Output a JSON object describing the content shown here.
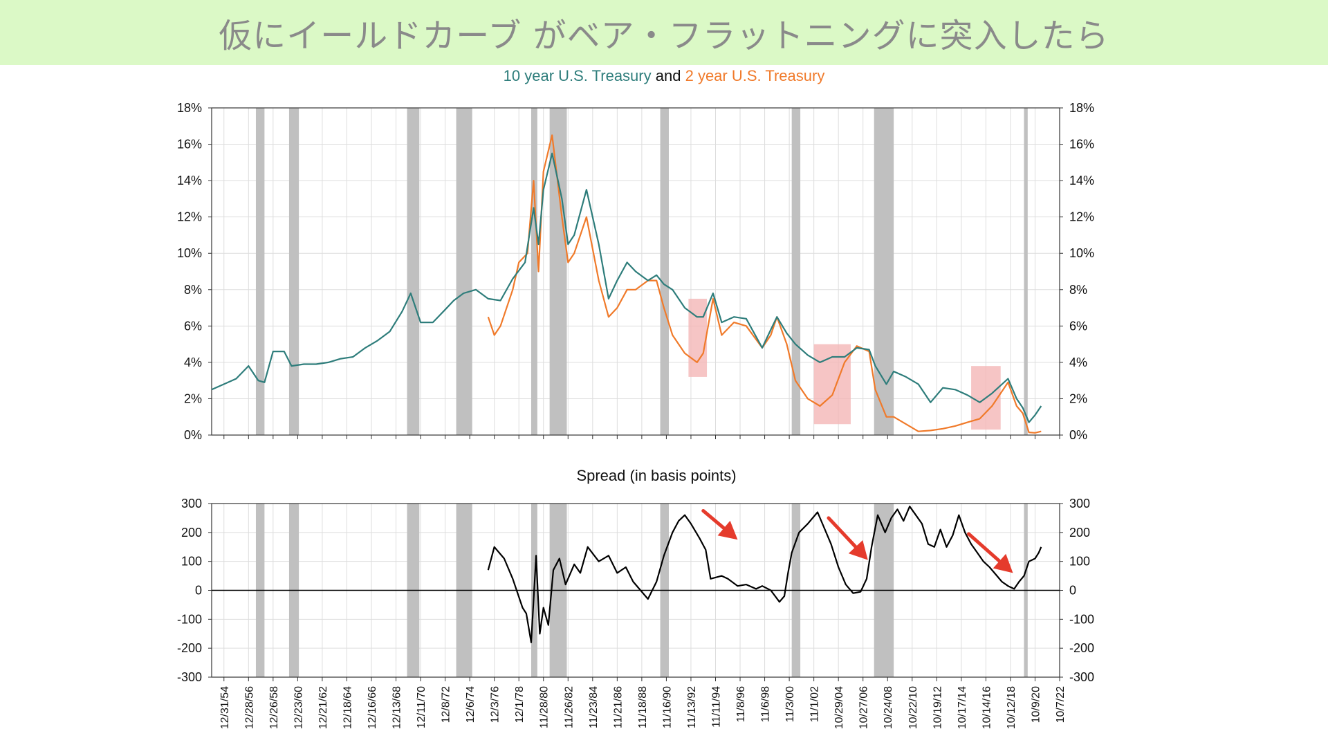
{
  "banner": {
    "title": "仮にイールドカーブ がベア・フラットニングに突入したら",
    "background": "#dbf9c6"
  },
  "colors": {
    "ten_year": "#2e7d7b",
    "two_year": "#f07a2a",
    "spread": "#000000",
    "recession": "#c0c0c0",
    "highlight": "#f4b6b6",
    "arrow": "#e53b2c"
  },
  "chart_data": [
    {
      "type": "line",
      "title_parts": [
        "10 year U.S. Treasury",
        "and",
        "2 year U.S. Treasury"
      ],
      "ylim": [
        0,
        18
      ],
      "yticks": [
        "0%",
        "2%",
        "4%",
        "6%",
        "8%",
        "10%",
        "12%",
        "14%",
        "16%",
        "18%"
      ],
      "xlim": [
        1954.0,
        2023.0
      ],
      "recessions": [
        [
          1957.6,
          1958.3
        ],
        [
          1960.3,
          1961.1
        ],
        [
          1969.9,
          1970.9
        ],
        [
          1973.9,
          1975.2
        ],
        [
          1980.0,
          1980.5
        ],
        [
          1981.5,
          1982.9
        ],
        [
          1990.5,
          1991.2
        ],
        [
          2001.2,
          2001.9
        ],
        [
          2007.9,
          2009.5
        ],
        [
          2020.1,
          2020.4
        ]
      ],
      "highlights": [
        {
          "x": [
            1992.8,
            1994.3
          ],
          "y": [
            3.2,
            7.5
          ]
        },
        {
          "x": [
            2003.0,
            2006.0
          ],
          "y": [
            0.6,
            5.0
          ]
        },
        {
          "x": [
            2015.8,
            2018.2
          ],
          "y": [
            0.3,
            3.8
          ]
        }
      ],
      "series": [
        {
          "name": "10 year U.S. Treasury",
          "x": [
            1954.0,
            1955.0,
            1956.0,
            1957.0,
            1957.8,
            1958.3,
            1959.0,
            1959.9,
            1960.5,
            1961.5,
            1962.5,
            1963.5,
            1964.5,
            1965.5,
            1966.5,
            1967.5,
            1968.5,
            1969.5,
            1970.2,
            1971.0,
            1972.0,
            1973.0,
            1973.7,
            1974.5,
            1975.5,
            1976.5,
            1977.5,
            1978.5,
            1979.5,
            1980.2,
            1980.6,
            1981.0,
            1981.7,
            1982.5,
            1983.0,
            1983.5,
            1984.5,
            1985.5,
            1986.3,
            1987.0,
            1987.8,
            1988.5,
            1989.5,
            1990.2,
            1990.8,
            1991.5,
            1992.5,
            1993.5,
            1994.0,
            1994.8,
            1995.5,
            1996.5,
            1997.5,
            1998.8,
            1999.5,
            2000.0,
            2000.8,
            2001.5,
            2002.5,
            2003.5,
            2004.5,
            2005.5,
            2006.5,
            2007.5,
            2008.0,
            2008.9,
            2009.5,
            2010.5,
            2011.5,
            2012.5,
            2013.5,
            2014.5,
            2015.5,
            2016.5,
            2017.5,
            2018.8,
            2019.5,
            2020.0,
            2020.5,
            2021.0,
            2021.5
          ],
          "values": [
            2.5,
            2.8,
            3.1,
            3.8,
            3.0,
            2.9,
            4.6,
            4.6,
            3.8,
            3.9,
            3.9,
            4.0,
            4.2,
            4.3,
            4.8,
            5.2,
            5.7,
            6.8,
            7.8,
            6.2,
            6.2,
            6.9,
            7.4,
            7.8,
            8.0,
            7.5,
            7.4,
            8.6,
            9.5,
            12.5,
            10.5,
            13.5,
            15.5,
            13.0,
            10.5,
            11.0,
            13.5,
            10.5,
            7.5,
            8.5,
            9.5,
            9.0,
            8.5,
            8.8,
            8.3,
            8.0,
            7.0,
            6.5,
            6.5,
            7.8,
            6.2,
            6.5,
            6.4,
            4.8,
            5.8,
            6.5,
            5.6,
            5.0,
            4.4,
            4.0,
            4.3,
            4.3,
            4.8,
            4.7,
            3.8,
            2.8,
            3.5,
            3.2,
            2.8,
            1.8,
            2.6,
            2.5,
            2.2,
            1.8,
            2.3,
            3.1,
            2.0,
            1.5,
            0.7,
            1.1,
            1.6
          ]
        },
        {
          "name": "2 year U.S. Treasury",
          "x": [
            1976.5,
            1977.0,
            1977.5,
            1978.5,
            1979.0,
            1979.7,
            1980.2,
            1980.6,
            1981.0,
            1981.7,
            1982.5,
            1983.0,
            1983.5,
            1984.5,
            1985.5,
            1986.3,
            1987.0,
            1987.8,
            1988.5,
            1989.5,
            1990.2,
            1990.8,
            1991.5,
            1992.5,
            1993.5,
            1994.0,
            1994.8,
            1995.5,
            1996.5,
            1997.5,
            1998.8,
            1999.5,
            2000.0,
            2000.8,
            2001.5,
            2002.5,
            2003.5,
            2004.5,
            2005.5,
            2006.5,
            2007.5,
            2008.0,
            2008.9,
            2009.5,
            2010.5,
            2011.5,
            2012.5,
            2013.5,
            2014.5,
            2015.5,
            2016.5,
            2017.5,
            2018.8,
            2019.5,
            2020.0,
            2020.5,
            2021.0,
            2021.5
          ],
          "values": [
            6.5,
            5.5,
            6.0,
            8.0,
            9.5,
            10.0,
            14.0,
            9.0,
            14.5,
            16.5,
            12.0,
            9.5,
            10.0,
            12.0,
            8.5,
            6.5,
            7.0,
            8.0,
            8.0,
            8.5,
            8.5,
            7.0,
            5.5,
            4.5,
            4.0,
            4.5,
            7.5,
            5.5,
            6.2,
            6.0,
            4.8,
            5.5,
            6.5,
            5.0,
            3.0,
            2.0,
            1.6,
            2.2,
            4.0,
            4.9,
            4.6,
            2.5,
            1.0,
            1.0,
            0.6,
            0.2,
            0.25,
            0.35,
            0.5,
            0.7,
            0.9,
            1.6,
            2.9,
            1.6,
            1.2,
            0.15,
            0.12,
            0.2
          ]
        }
      ]
    },
    {
      "type": "line",
      "title": "Spread (in basis points)",
      "ylim": [
        -300,
        300
      ],
      "yticks": [
        "-300",
        "-200",
        "-100",
        "0",
        "100",
        "200",
        "300"
      ],
      "xlim": [
        1954.0,
        2023.0
      ],
      "series": [
        {
          "x": [
            1976.5,
            1977.0,
            1977.8,
            1978.5,
            1979.3,
            1979.6,
            1980.0,
            1980.4,
            1980.7,
            1981.0,
            1981.4,
            1981.8,
            1982.3,
            1982.8,
            1983.5,
            1984.0,
            1984.6,
            1985.5,
            1986.3,
            1987.0,
            1987.7,
            1988.3,
            1988.8,
            1989.5,
            1990.2,
            1990.8,
            1991.5,
            1992.0,
            1992.5,
            1993.0,
            1993.7,
            1994.2,
            1994.6,
            1995.5,
            1996.0,
            1996.8,
            1997.5,
            1998.3,
            1998.8,
            1999.5,
            2000.2,
            2000.6,
            2000.9,
            2001.2,
            2001.8,
            2002.5,
            2003.3,
            2003.8,
            2004.4,
            2005.0,
            2005.6,
            2006.2,
            2006.8,
            2007.3,
            2007.7,
            2008.2,
            2008.8,
            2009.3,
            2009.8,
            2010.3,
            2010.8,
            2011.3,
            2011.8,
            2012.3,
            2012.8,
            2013.3,
            2013.8,
            2014.3,
            2014.8,
            2015.3,
            2015.8,
            2016.3,
            2016.8,
            2017.3,
            2017.8,
            2018.3,
            2018.8,
            2019.3,
            2019.7,
            2020.1,
            2020.5,
            2021.0,
            2021.3,
            2021.5
          ],
          "values": [
            70,
            150,
            110,
            40,
            -60,
            -80,
            -180,
            120,
            -150,
            -60,
            -120,
            70,
            110,
            20,
            90,
            60,
            150,
            100,
            120,
            60,
            80,
            30,
            5,
            -30,
            30,
            120,
            200,
            240,
            260,
            230,
            180,
            140,
            40,
            50,
            40,
            15,
            20,
            5,
            15,
            0,
            -40,
            -20,
            60,
            130,
            200,
            230,
            270,
            220,
            160,
            80,
            20,
            -10,
            -5,
            40,
            150,
            260,
            200,
            250,
            280,
            240,
            290,
            260,
            230,
            160,
            150,
            210,
            150,
            190,
            260,
            200,
            160,
            130,
            100,
            80,
            55,
            30,
            15,
            5,
            30,
            50,
            100,
            110,
            130,
            150
          ]
        }
      ],
      "arrows": [
        {
          "from": [
            1994.0,
            275
          ],
          "to": [
            1996.8,
            175
          ]
        },
        {
          "from": [
            2004.2,
            250
          ],
          "to": [
            2007.4,
            105
          ]
        },
        {
          "from": [
            2015.6,
            195
          ],
          "to": [
            2019.2,
            60
          ]
        }
      ]
    }
  ],
  "x_axis": {
    "tick_labels": [
      "12/31/54",
      "12/28/56",
      "12/26/58",
      "12/23/60",
      "12/21/62",
      "12/18/64",
      "12/16/66",
      "12/13/68",
      "12/11/70",
      "12/8/72",
      "12/6/74",
      "12/3/76",
      "12/1/78",
      "11/28/80",
      "11/26/82",
      "11/23/84",
      "11/21/86",
      "11/18/88",
      "11/16/90",
      "11/13/92",
      "11/11/94",
      "11/8/96",
      "11/6/98",
      "11/3/00",
      "11/1/02",
      "10/29/04",
      "10/27/06",
      "10/24/08",
      "10/22/10",
      "10/19/12",
      "10/17/14",
      "10/14/16",
      "10/12/18",
      "10/9/20",
      "10/7/22"
    ],
    "tick_years": [
      1955.0,
      1957.0,
      1959.0,
      1961.0,
      1963.0,
      1965.0,
      1967.0,
      1969.0,
      1971.0,
      1973.0,
      1975.0,
      1977.0,
      1979.0,
      1981.0,
      1983.0,
      1985.0,
      1987.0,
      1989.0,
      1991.0,
      1993.0,
      1995.0,
      1997.0,
      1999.0,
      2001.0,
      2003.0,
      2005.0,
      2007.0,
      2009.0,
      2011.0,
      2013.0,
      2015.0,
      2017.0,
      2019.0,
      2021.0,
      2023.0
    ]
  }
}
